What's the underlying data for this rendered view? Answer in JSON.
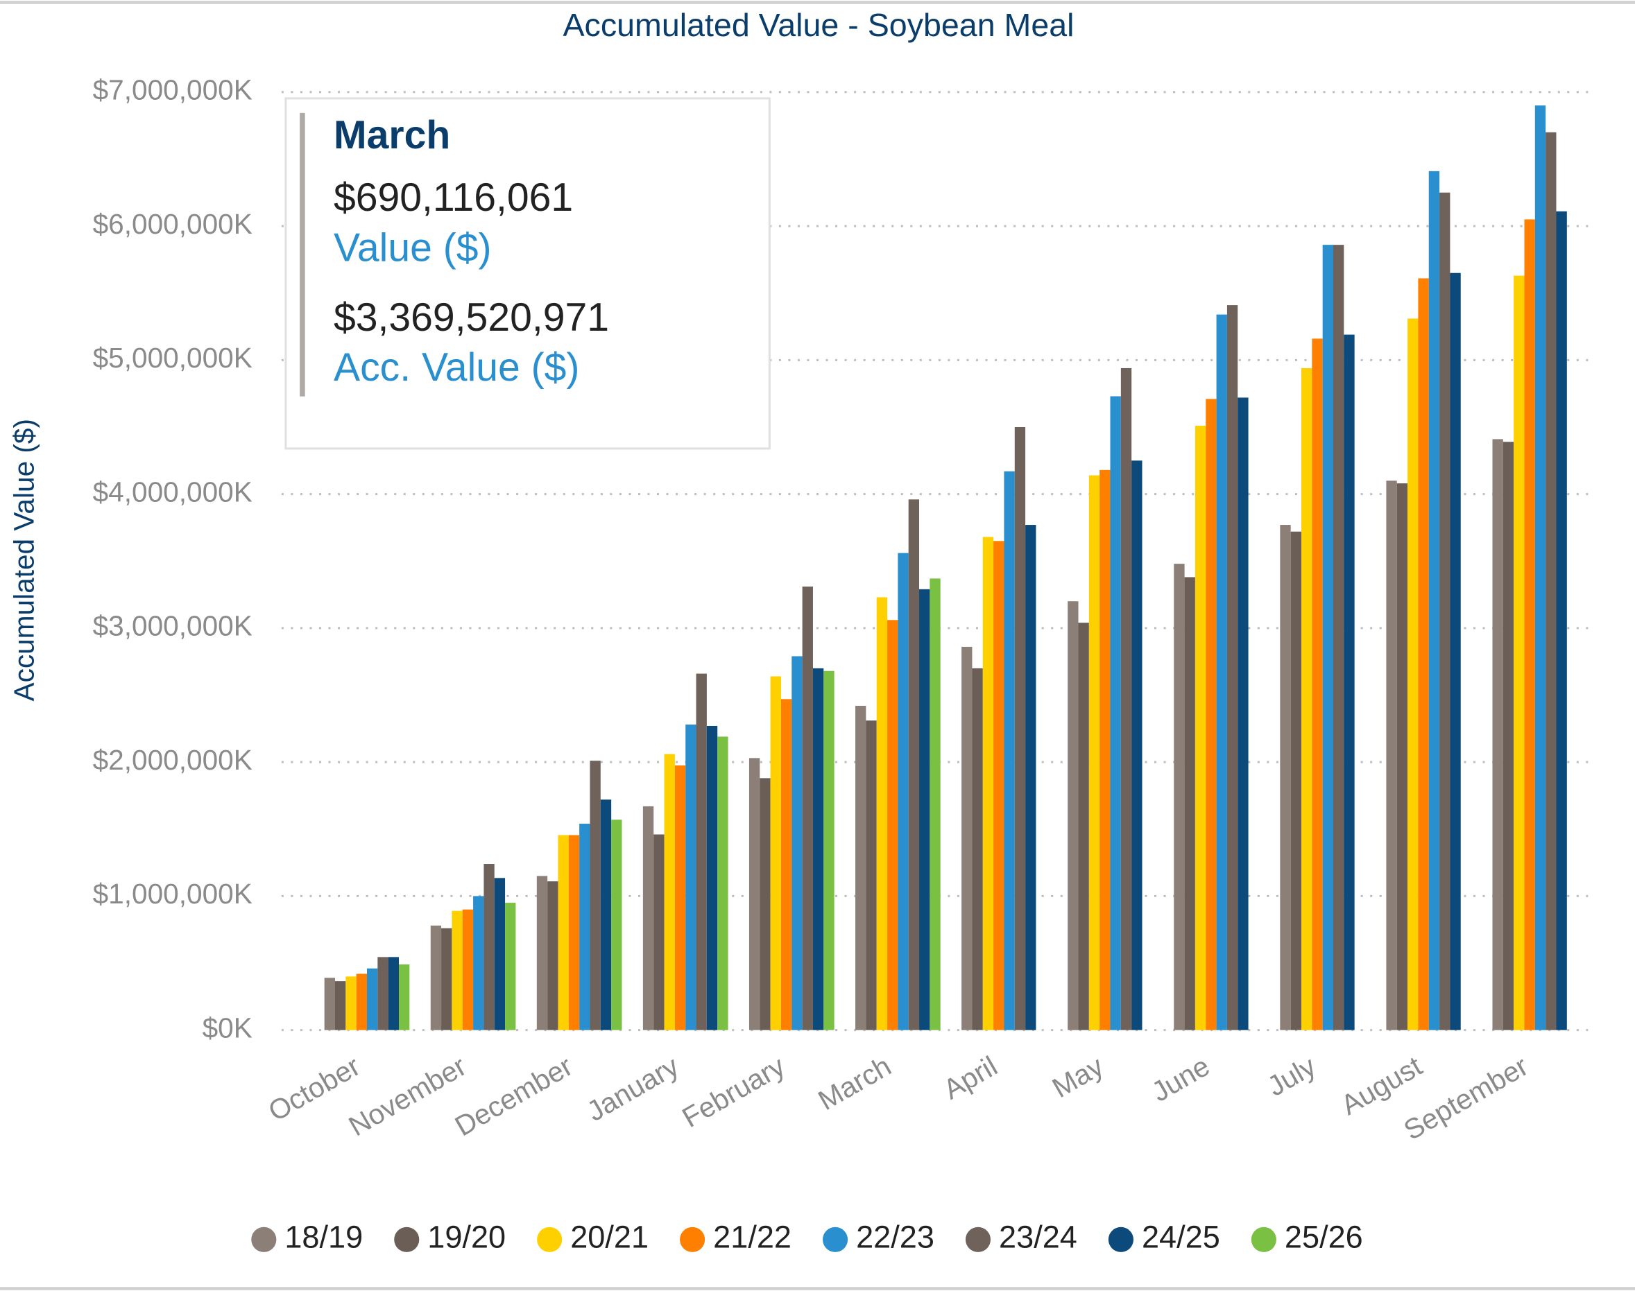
{
  "chart_data": {
    "type": "bar",
    "title": "Accumulated Value - Soybean Meal",
    "ylabel": "Accumulated Value ($)",
    "categories": [
      "October",
      "November",
      "December",
      "January",
      "February",
      "March",
      "April",
      "May",
      "June",
      "July",
      "August",
      "September"
    ],
    "series": [
      {
        "name": "18/19",
        "color": "#8c7f78",
        "values": [
          390000,
          780000,
          1150000,
          1670000,
          2030000,
          2420000,
          2860000,
          3200000,
          3480000,
          3770000,
          4100000,
          4410000
        ]
      },
      {
        "name": "19/20",
        "color": "#6b5e57",
        "values": [
          365000,
          760000,
          1110000,
          1460000,
          1880000,
          2310000,
          2700000,
          3040000,
          3380000,
          3720000,
          4080000,
          4390000
        ]
      },
      {
        "name": "20/21",
        "color": "#ffd000",
        "values": [
          400000,
          890000,
          1455000,
          2060000,
          2640000,
          3230000,
          3680000,
          4140000,
          4510000,
          4940000,
          5310000,
          5630000
        ]
      },
      {
        "name": "21/22",
        "color": "#ff7f00",
        "values": [
          420000,
          900000,
          1455000,
          1975000,
          2470000,
          3060000,
          3650000,
          4180000,
          4710000,
          5160000,
          5610000,
          6050000
        ]
      },
      {
        "name": "22/23",
        "color": "#2a8fcf",
        "values": [
          460000,
          1000000,
          1540000,
          2280000,
          2790000,
          3560000,
          4170000,
          4730000,
          5340000,
          5860000,
          6410000,
          6900000
        ]
      },
      {
        "name": "23/24",
        "color": "#6e625b",
        "values": [
          545000,
          1240000,
          2010000,
          2660000,
          3310000,
          3960000,
          4500000,
          4940000,
          5410000,
          5860000,
          6250000,
          6700000
        ]
      },
      {
        "name": "24/25",
        "color": "#0b4a7a",
        "values": [
          545000,
          1135000,
          1720000,
          2270000,
          2700000,
          3290000,
          3770000,
          4250000,
          4720000,
          5190000,
          5650000,
          6110000
        ]
      },
      {
        "name": "25/26",
        "color": "#7ac143",
        "values": [
          490000,
          950000,
          1570000,
          2190000,
          2680000,
          3370000,
          null,
          null,
          null,
          null,
          null,
          null
        ]
      }
    ],
    "ylim": [
      0,
      7000000
    ],
    "yticks": [
      {
        "value": 0,
        "label": "$0K"
      },
      {
        "value": 1000000,
        "label": "$1,000,000K"
      },
      {
        "value": 2000000,
        "label": "$2,000,000K"
      },
      {
        "value": 3000000,
        "label": "$3,000,000K"
      },
      {
        "value": 4000000,
        "label": "$4,000,000K"
      },
      {
        "value": 5000000,
        "label": "$5,000,000K"
      },
      {
        "value": 6000000,
        "label": "$6,000,000K"
      },
      {
        "value": 7000000,
        "label": "$7,000,000K"
      }
    ],
    "grid": true,
    "legend": "bottom",
    "tooltip": {
      "title": "March",
      "items": [
        {
          "value": "$690,116,061",
          "label": "Value ($)"
        },
        {
          "value": "$3,369,520,971",
          "label": "Acc. Value ($)"
        }
      ]
    }
  }
}
